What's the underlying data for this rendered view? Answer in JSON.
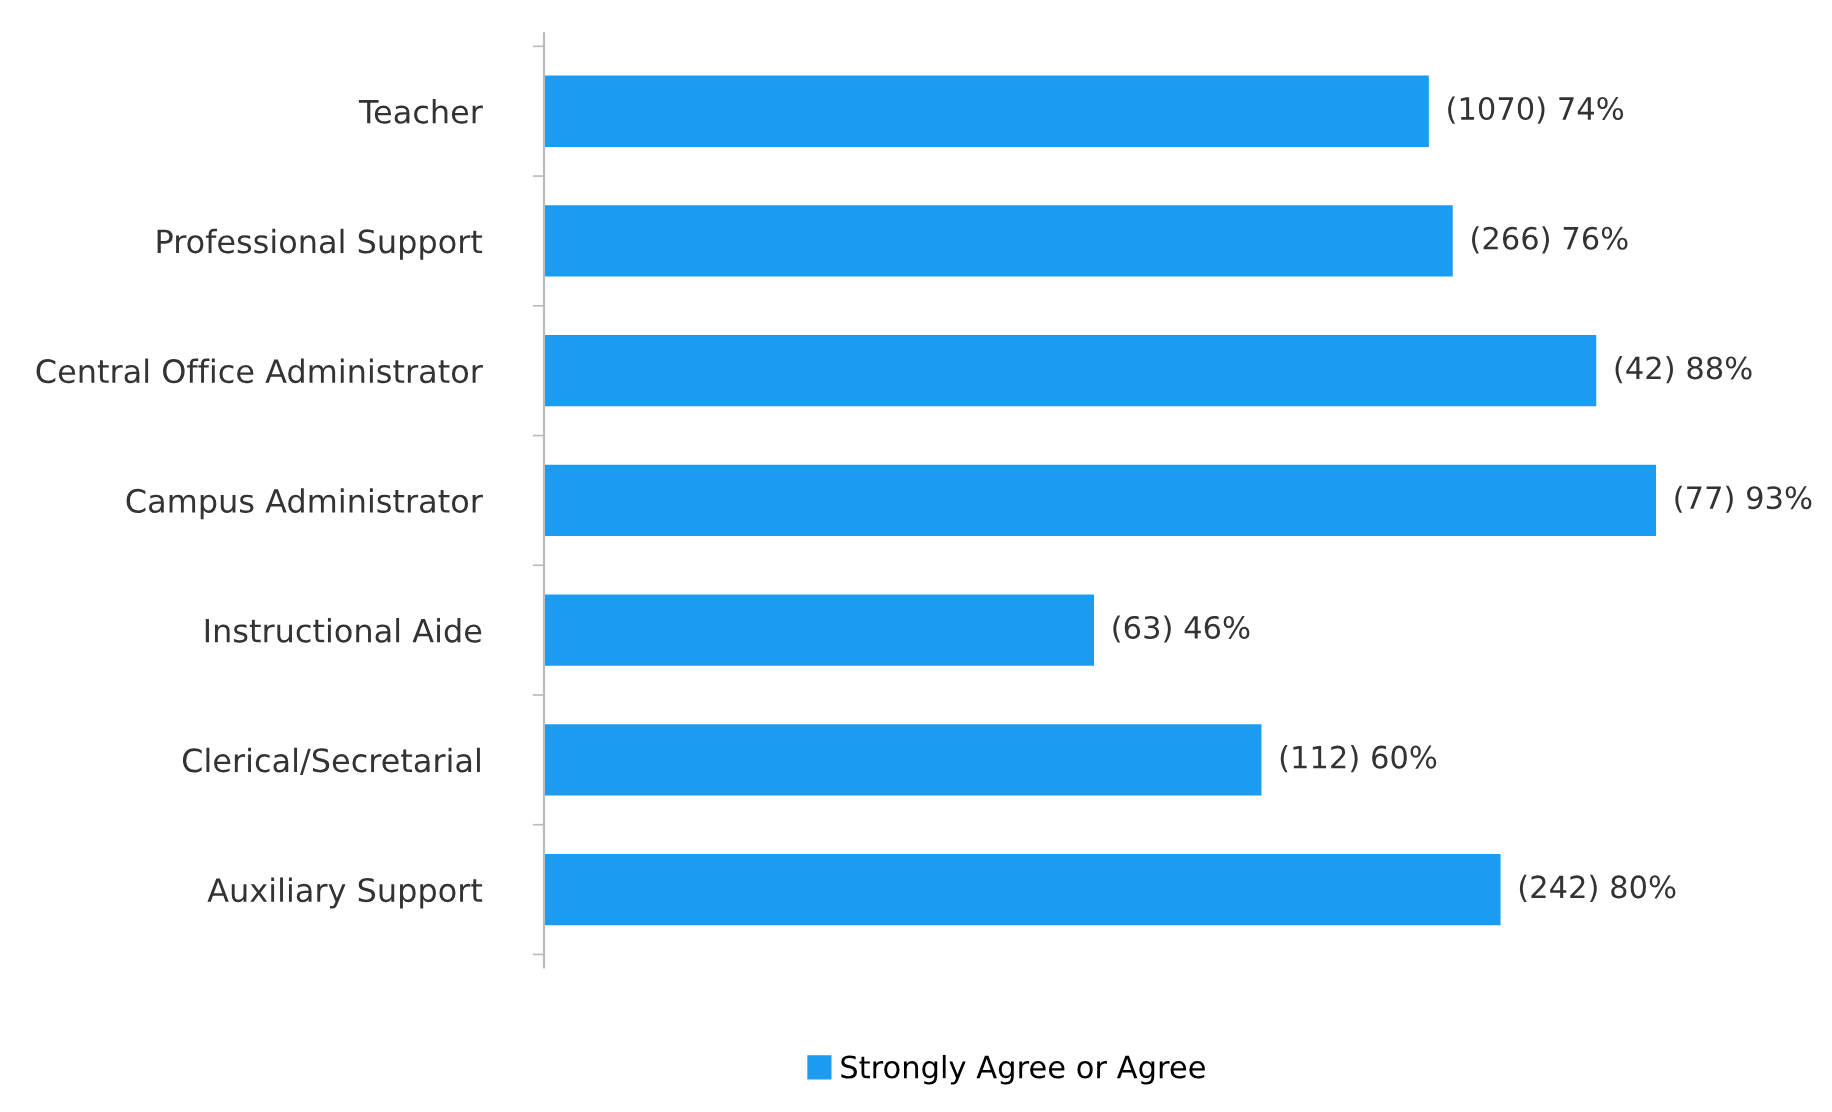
{
  "chart_data": {
    "type": "bar",
    "orientation": "horizontal",
    "categories": [
      "Teacher",
      "Professional Support",
      "Central Office Administrator",
      "Campus Administrator",
      "Instructional Aide",
      "Clerical/Secretarial",
      "Auxiliary Support"
    ],
    "series": [
      {
        "name": "Strongly Agree or Agree",
        "color": "#1c9cf0",
        "values": [
          74,
          76,
          88,
          93,
          46,
          60,
          80
        ],
        "value_labels": [
          "(1070) 74%",
          "(266) 76%",
          "(42) 88%",
          "(77) 93%",
          "(63) 46%",
          "(112) 60%",
          "(242) 80%"
        ]
      }
    ],
    "legend": "bottom",
    "grid": false
  }
}
